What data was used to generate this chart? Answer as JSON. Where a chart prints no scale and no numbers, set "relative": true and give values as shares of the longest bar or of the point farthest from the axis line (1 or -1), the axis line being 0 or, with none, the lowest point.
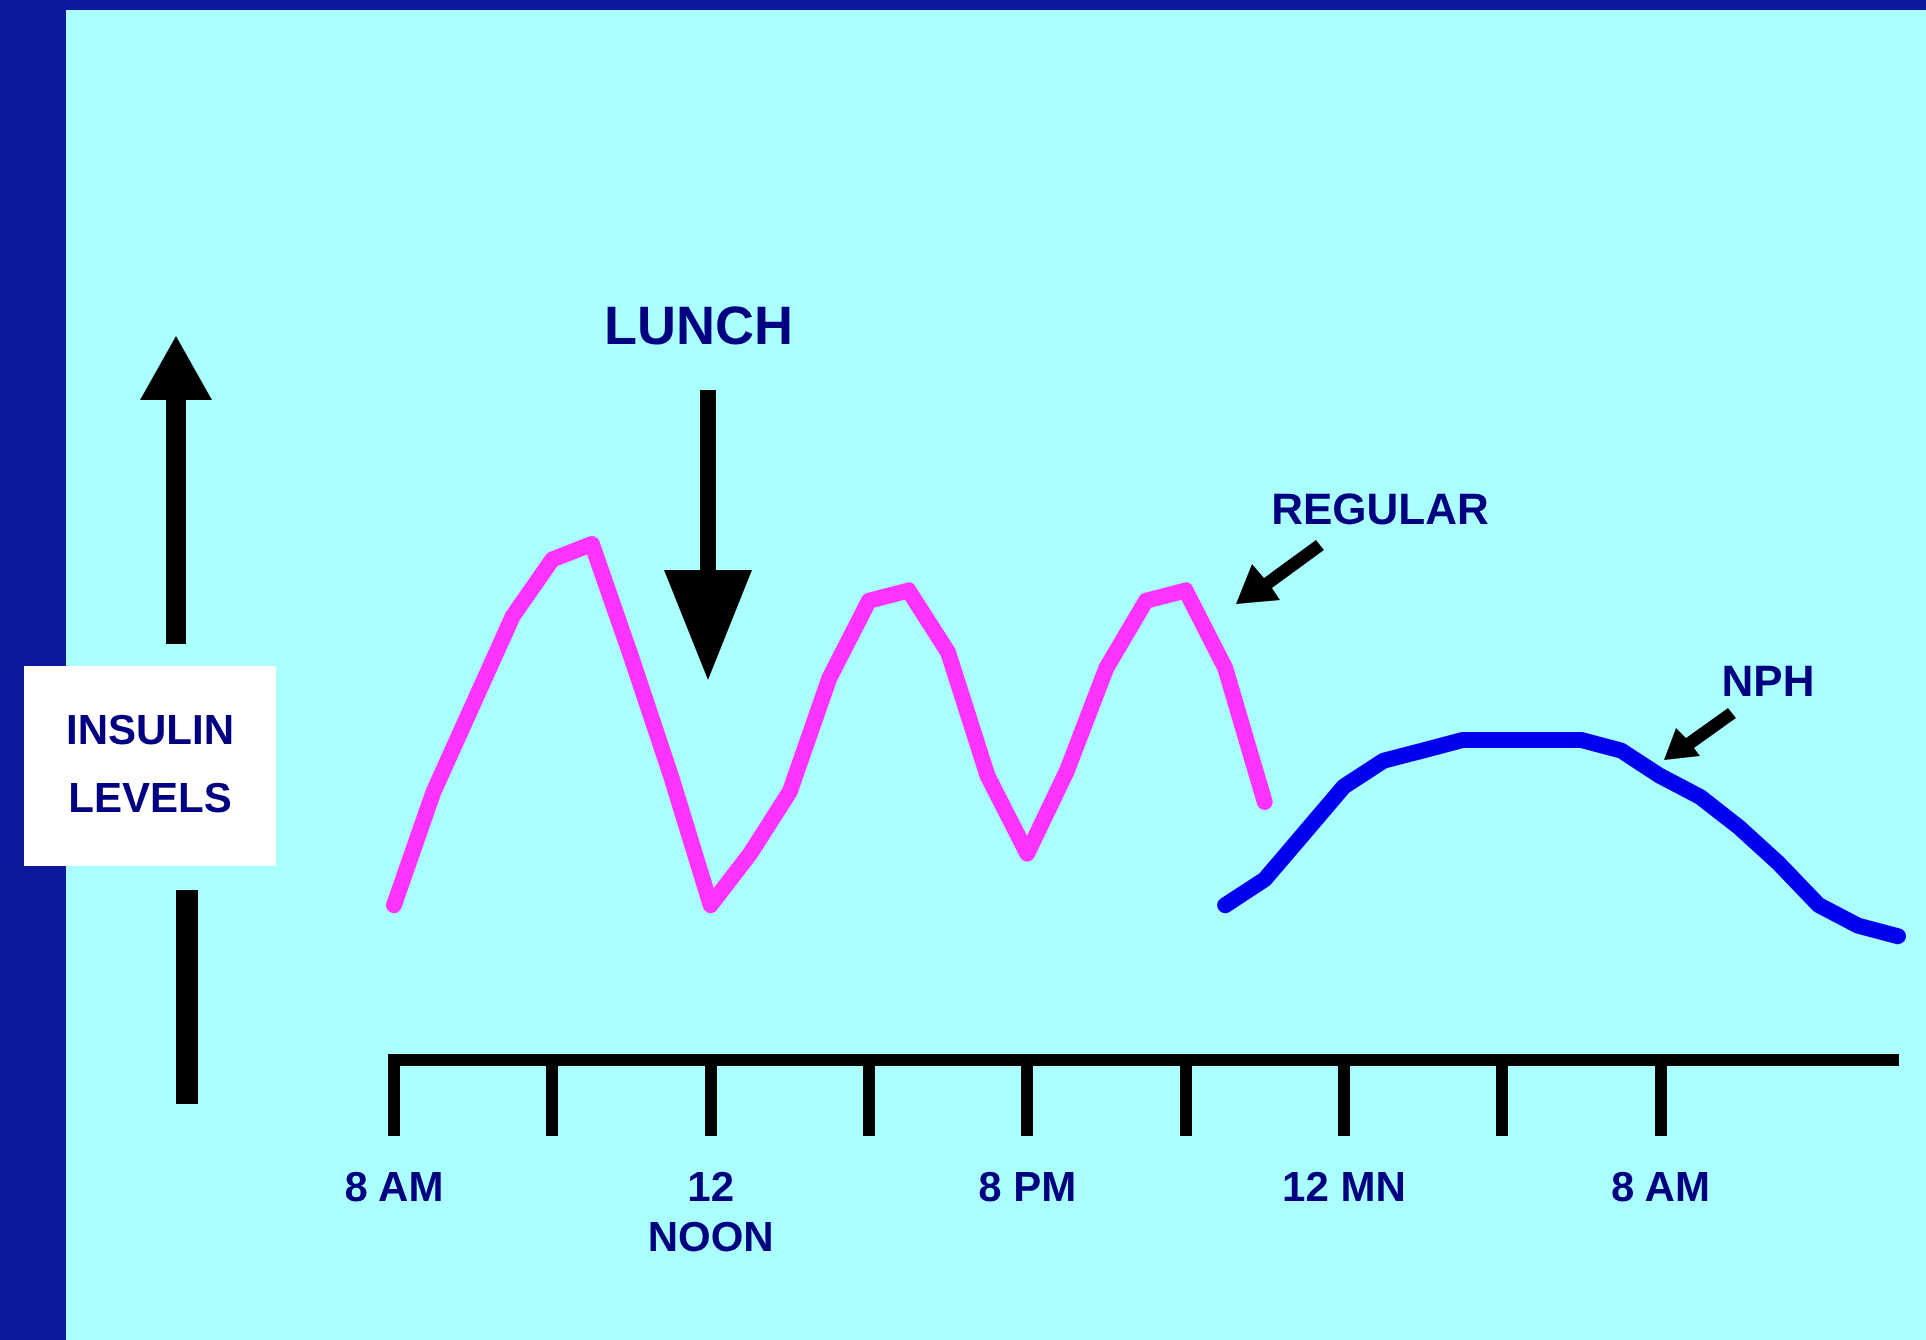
{
  "chart_data": {
    "type": "line",
    "relative": true,
    "ylabel": "INSULIN LEVELS",
    "annotations": [
      "LUNCH"
    ],
    "categories": [
      "8 AM",
      null,
      null,
      null,
      null,
      null,
      null,
      null,
      "12\nNOON",
      null,
      null,
      null,
      null,
      null,
      null,
      null,
      "8 PM",
      null,
      null,
      null,
      null,
      null,
      null,
      null,
      "12 MN",
      null,
      null,
      null,
      null,
      null,
      null,
      null,
      "8 AM",
      null,
      null,
      null,
      null,
      null,
      null
    ],
    "series": [
      {
        "name": "REGULAR",
        "color": "#ff33ff",
        "values": [
          0.3,
          0.52,
          0.69,
          0.86,
          0.97,
          1,
          0.78,
          0.55,
          0.3,
          0.4,
          0.52,
          0.74,
          0.89,
          0.91,
          0.79,
          0.55,
          0.4,
          0.56,
          0.76,
          0.89,
          0.91,
          0.76,
          0.5,
          null,
          null,
          null,
          null,
          null,
          null,
          null,
          null,
          null,
          null,
          null,
          null,
          null,
          null,
          null,
          null
        ]
      },
      {
        "name": "NPH",
        "color": "#0000ee",
        "values": [
          null,
          null,
          null,
          null,
          null,
          null,
          null,
          null,
          null,
          null,
          null,
          null,
          null,
          null,
          null,
          null,
          null,
          null,
          null,
          null,
          null,
          0.3,
          0.35,
          0.44,
          0.53,
          0.58,
          0.6,
          0.62,
          0.62,
          0.62,
          0.62,
          0.6,
          0.55,
          0.51,
          0.45,
          0.38,
          0.3,
          0.26,
          0.24
        ]
      }
    ]
  }
}
